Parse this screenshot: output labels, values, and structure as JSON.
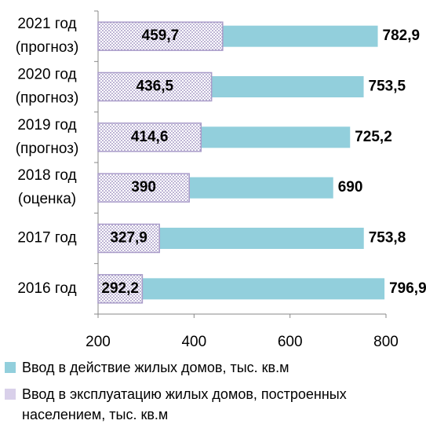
{
  "chart_data": {
    "type": "bar",
    "orientation": "horizontal",
    "overlap": true,
    "categories": [
      [
        "2021 год",
        "(прогноз)"
      ],
      [
        "2020 год",
        "(прогноз)"
      ],
      [
        "2019 год",
        "(прогноз)"
      ],
      [
        "2018 год",
        "(оценка)"
      ],
      [
        "2017 год"
      ],
      [
        "2016 год"
      ]
    ],
    "series": [
      {
        "name": "Ввод в действие жилых домов, тыс. кв.м",
        "color": "#92cfdc",
        "values": [
          782.9,
          753.5,
          725.2,
          690,
          753.8,
          796.9
        ],
        "value_labels": [
          "782,9",
          "753,5",
          "725,2",
          "690",
          "753,8",
          "796,9"
        ]
      },
      {
        "name": "Ввод в эксплуатацию жилых домов, построенных населением, тыс. кв.м",
        "color": "#a99cc9",
        "pattern": "dots",
        "values": [
          459.7,
          436.5,
          414.6,
          390,
          327.9,
          292.2
        ],
        "value_labels": [
          "459,7",
          "436,5",
          "414,6",
          "390",
          "327,9",
          "292,2"
        ]
      }
    ],
    "xlim": [
      200,
      800
    ],
    "xticks": [
      200,
      400,
      600,
      800
    ]
  }
}
